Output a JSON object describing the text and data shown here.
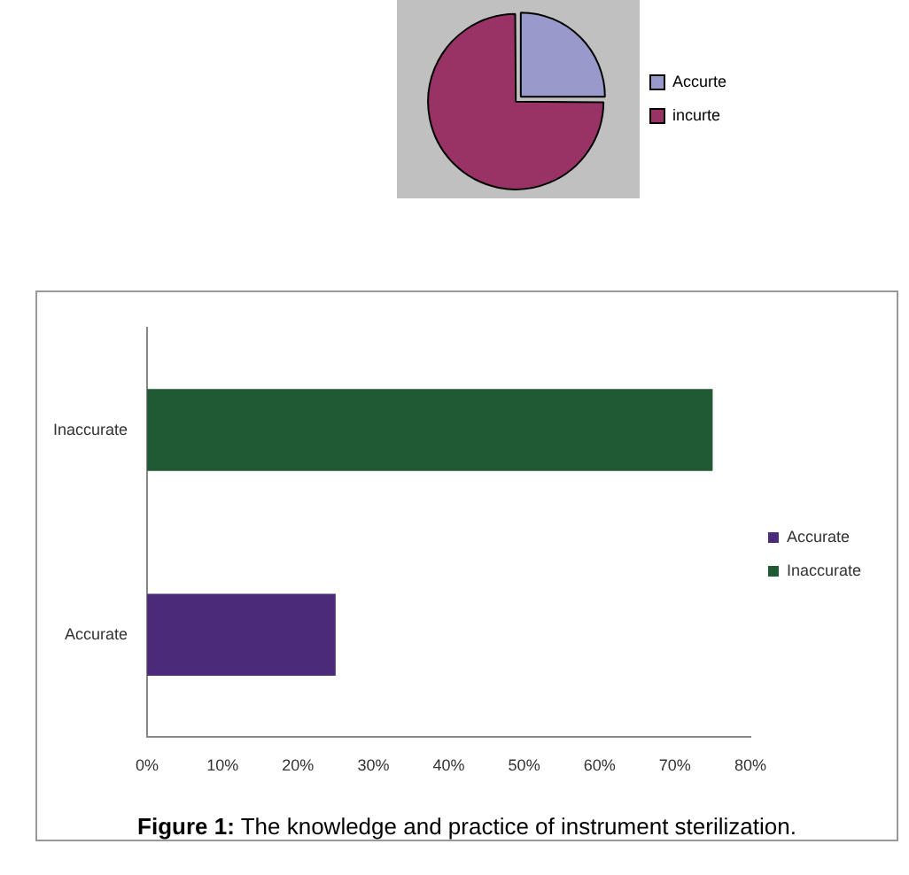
{
  "chart_data": [
    {
      "type": "pie",
      "categories": [
        "Accurte",
        "incurte"
      ],
      "values": [
        25,
        75
      ],
      "colors": [
        "#9999cc",
        "#993366"
      ],
      "legend": "right"
    },
    {
      "type": "bar",
      "orientation": "horizontal",
      "categories": [
        "Inaccurate",
        "Accurate"
      ],
      "series": [
        {
          "name": "Accurate",
          "color": "#4b2a7a",
          "values": [
            null,
            25
          ]
        },
        {
          "name": "Inaccurate",
          "color": "#1f5a35",
          "values": [
            75,
            null
          ]
        }
      ],
      "xlim": [
        0,
        80
      ],
      "xticks": [
        {
          "value": 0,
          "label": "0%"
        },
        {
          "value": 10,
          "label": "10%"
        },
        {
          "value": 20,
          "label": "20%"
        },
        {
          "value": 30,
          "label": "30%"
        },
        {
          "value": 40,
          "label": "40%"
        },
        {
          "value": 50,
          "label": "50%"
        },
        {
          "value": 60,
          "label": "60%"
        },
        {
          "value": 70,
          "label": "70%"
        },
        {
          "value": 80,
          "label": "80%"
        }
      ],
      "grid": false,
      "legend": "right",
      "annotations": [
        "Figure 1: The knowledge and practice of instrument sterilization."
      ]
    }
  ]
}
